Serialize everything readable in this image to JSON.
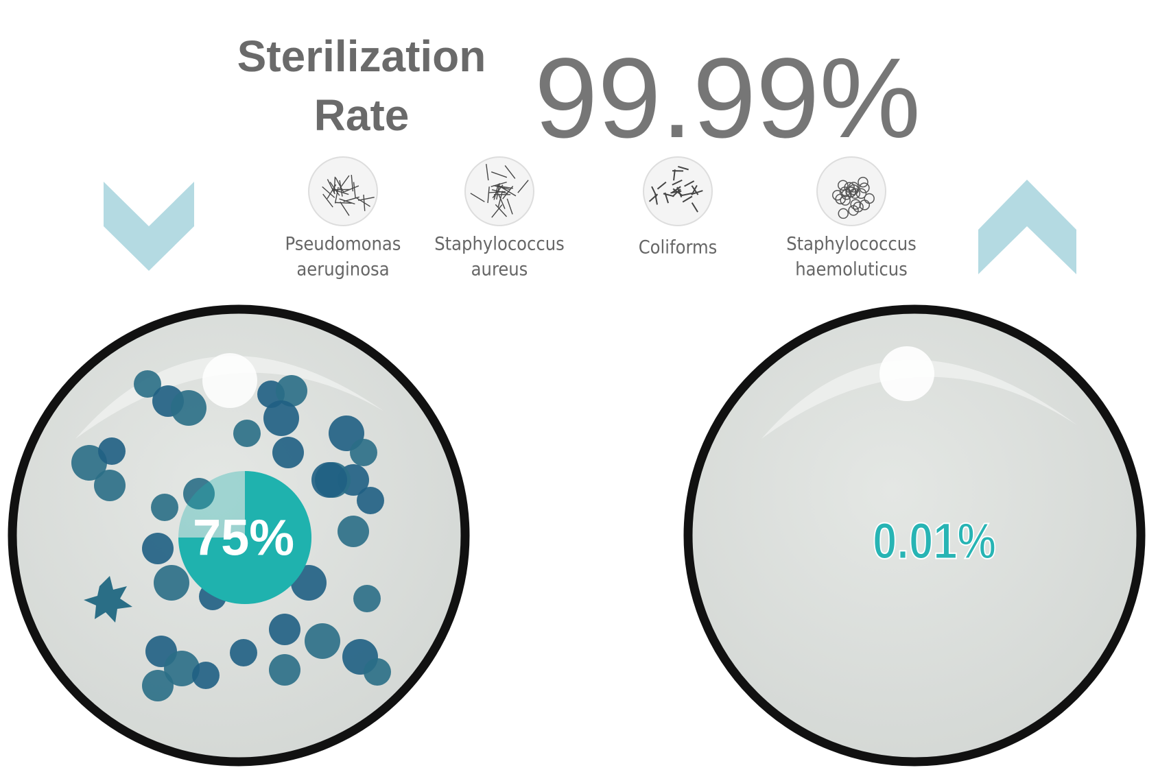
{
  "header": {
    "title_lines": [
      "Sterilization",
      "Rate"
    ],
    "rate": "99.99%"
  },
  "bacteria": [
    {
      "lines": [
        "Pseudomonas",
        "aeruginosa"
      ]
    },
    {
      "lines": [
        "Staphylococcus",
        "aureus"
      ]
    },
    {
      "lines": [
        "Coliforms"
      ]
    },
    {
      "lines": [
        "Staphylococcus",
        "haemoluticus"
      ]
    }
  ],
  "dishes": [
    {
      "label": "75%"
    },
    {
      "label": "0.01%"
    }
  ]
}
